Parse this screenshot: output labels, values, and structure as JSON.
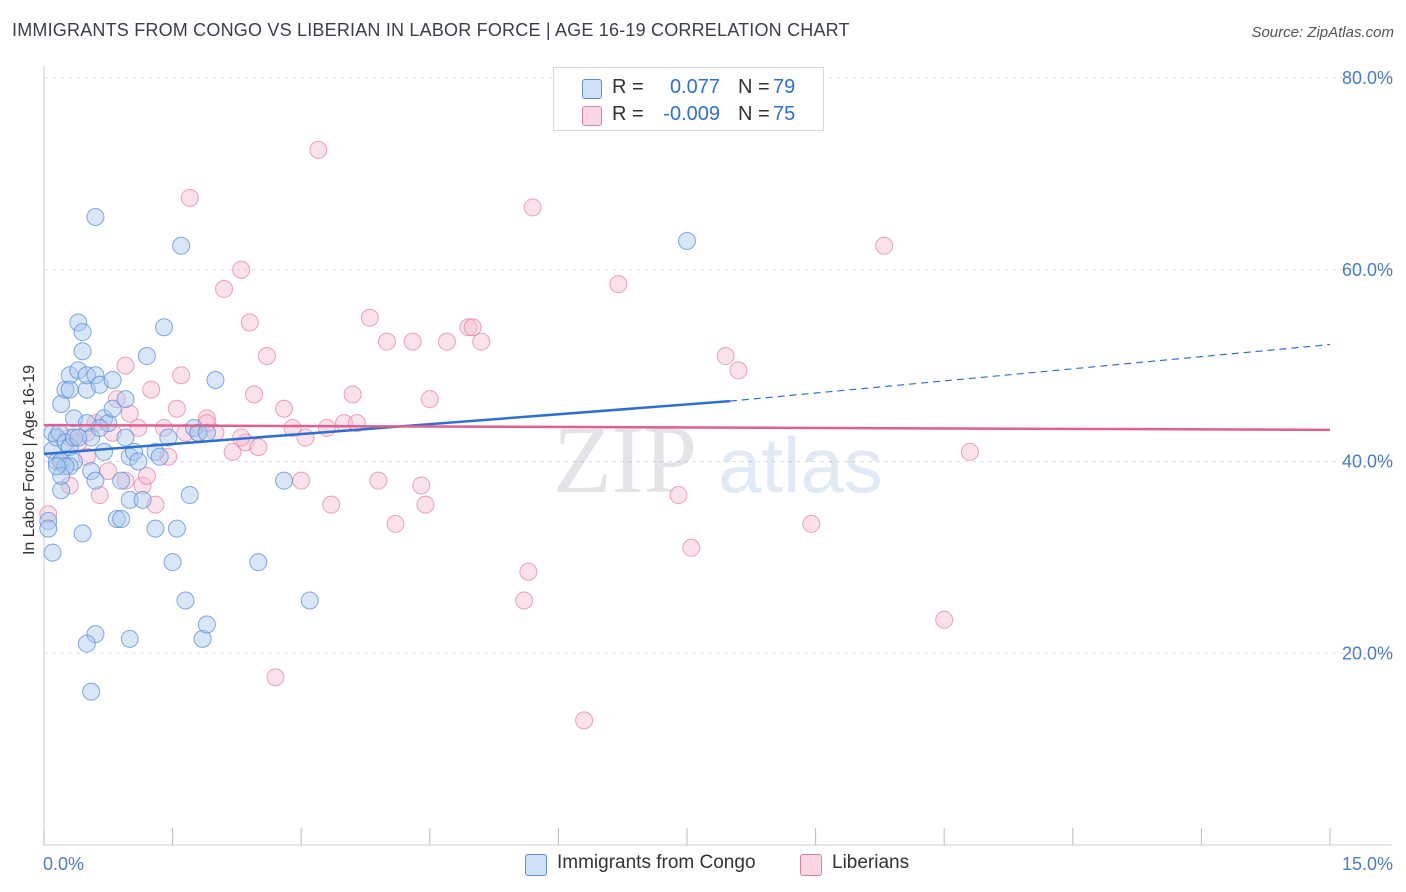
{
  "header": {
    "title": "IMMIGRANTS FROM CONGO VS LIBERIAN IN LABOR FORCE | AGE 16-19 CORRELATION CHART",
    "source": "Source: ZipAtlas.com"
  },
  "watermark": {
    "zip": "ZIP",
    "atlas": "atlas"
  },
  "legend": {
    "rows": [
      {
        "r_label": "R =",
        "r_value": "0.077",
        "n_label": "N =",
        "n_value": "79",
        "color": "#a8c8f0"
      },
      {
        "r_label": "R =",
        "r_value": "-0.009",
        "n_label": "N =",
        "n_value": "75",
        "color": "#f7bcd0"
      }
    ]
  },
  "bottom_legend": [
    {
      "label": "Immigrants from Congo",
      "color": "#a8c8f0"
    },
    {
      "label": "Liberians",
      "color": "#f7bcd0"
    }
  ],
  "colors": {
    "congo_fill": "#a8c8f0",
    "congo_stroke": "#5b8fd6",
    "congo_line": "#2e6fd1",
    "liberian_fill": "#f7bcd0",
    "liberian_stroke": "#e07fa2",
    "liberian_line": "#e0608f",
    "grid": "#dde0e6",
    "tick_text": "#4a7cc9"
  },
  "chart_data": {
    "type": "scatter",
    "title": "IMMIGRANTS FROM CONGO VS LIBERIAN IN LABOR FORCE | AGE 16-19 CORRELATION CHART",
    "xlabel": "",
    "ylabel": "In Labor Force | Age 16-19",
    "xlim": [
      0,
      15
    ],
    "ylim": [
      0,
      80
    ],
    "x_tick_labels": [
      "0.0%",
      "15.0%"
    ],
    "y_ticks": [
      20,
      40,
      60,
      80
    ],
    "y_tick_labels": [
      "20.0%",
      "40.0%",
      "60.0%",
      "80.0%"
    ],
    "grid": "horizontal dashed",
    "legend_position": "top-center",
    "series": [
      {
        "name": "Immigrants from Congo",
        "r": 0.077,
        "n": 79,
        "trend": {
          "x_solid_end": 8.0,
          "x_dashed_end": 15.0,
          "y_at_0": 40.8,
          "y_at_8": 46.3,
          "y_at_15": 52.2
        },
        "points": [
          [
            0.05,
            33.8
          ],
          [
            0.05,
            33.0
          ],
          [
            0.1,
            43.0
          ],
          [
            0.1,
            41.2
          ],
          [
            0.15,
            40.0
          ],
          [
            0.15,
            42.5
          ],
          [
            0.18,
            43.0
          ],
          [
            0.2,
            37.0
          ],
          [
            0.2,
            40.0
          ],
          [
            0.2,
            46.0
          ],
          [
            0.25,
            47.5
          ],
          [
            0.25,
            42.0
          ],
          [
            0.3,
            49.0
          ],
          [
            0.3,
            47.5
          ],
          [
            0.3,
            41.5
          ],
          [
            0.35,
            44.5
          ],
          [
            0.35,
            42.5
          ],
          [
            0.35,
            40.0
          ],
          [
            0.4,
            49.5
          ],
          [
            0.4,
            54.5
          ],
          [
            0.45,
            51.5
          ],
          [
            0.45,
            53.5
          ],
          [
            0.5,
            47.5
          ],
          [
            0.5,
            49.0
          ],
          [
            0.5,
            44.0
          ],
          [
            0.55,
            42.5
          ],
          [
            0.55,
            39.0
          ],
          [
            0.6,
            65.5
          ],
          [
            0.6,
            49.0
          ],
          [
            0.6,
            38.0
          ],
          [
            0.65,
            48.0
          ],
          [
            0.7,
            44.5
          ],
          [
            0.7,
            41.0
          ],
          [
            0.75,
            44.0
          ],
          [
            0.8,
            45.5
          ],
          [
            0.8,
            48.5
          ],
          [
            0.85,
            34.0
          ],
          [
            0.9,
            34.0
          ],
          [
            0.9,
            38.0
          ],
          [
            0.95,
            46.5
          ],
          [
            0.95,
            42.5
          ],
          [
            1.0,
            40.5
          ],
          [
            1.0,
            36.0
          ],
          [
            1.05,
            41.0
          ],
          [
            1.1,
            40.0
          ],
          [
            1.2,
            51.0
          ],
          [
            1.3,
            41.0
          ],
          [
            1.3,
            33.0
          ],
          [
            1.35,
            40.5
          ],
          [
            1.4,
            54.0
          ],
          [
            1.45,
            42.5
          ],
          [
            1.5,
            29.5
          ],
          [
            1.55,
            33.0
          ],
          [
            1.6,
            62.5
          ],
          [
            1.65,
            25.5
          ],
          [
            1.7,
            36.5
          ],
          [
            1.75,
            43.5
          ],
          [
            1.8,
            43.0
          ],
          [
            1.85,
            21.5
          ],
          [
            1.9,
            43.0
          ],
          [
            1.9,
            23.0
          ],
          [
            2.0,
            48.5
          ],
          [
            0.1,
            30.5
          ],
          [
            0.3,
            39.5
          ],
          [
            0.45,
            32.5
          ],
          [
            0.55,
            16.0
          ],
          [
            0.6,
            22.0
          ],
          [
            0.5,
            21.0
          ],
          [
            1.0,
            21.5
          ],
          [
            2.5,
            29.5
          ],
          [
            2.8,
            38.0
          ],
          [
            3.1,
            25.5
          ],
          [
            7.5,
            63.0
          ],
          [
            0.25,
            39.5
          ],
          [
            0.4,
            42.5
          ],
          [
            0.65,
            43.5
          ],
          [
            1.15,
            36.0
          ],
          [
            0.2,
            38.5
          ],
          [
            0.15,
            39.5
          ]
        ]
      },
      {
        "name": "Liberians",
        "r": -0.009,
        "n": 75,
        "trend": {
          "y_at_0": 43.8,
          "y_at_15": 43.3
        },
        "points": [
          [
            0.05,
            34.5
          ],
          [
            0.2,
            40.0
          ],
          [
            0.3,
            37.5
          ],
          [
            0.4,
            42.0
          ],
          [
            0.5,
            40.5
          ],
          [
            0.6,
            44.0
          ],
          [
            0.65,
            36.5
          ],
          [
            0.75,
            39.0
          ],
          [
            0.8,
            43.0
          ],
          [
            0.85,
            46.5
          ],
          [
            0.95,
            50.0
          ],
          [
            0.95,
            38.0
          ],
          [
            1.0,
            45.0
          ],
          [
            1.1,
            43.5
          ],
          [
            1.15,
            37.5
          ],
          [
            1.2,
            38.5
          ],
          [
            1.25,
            47.5
          ],
          [
            1.3,
            35.5
          ],
          [
            1.4,
            43.5
          ],
          [
            1.45,
            40.5
          ],
          [
            1.55,
            45.5
          ],
          [
            1.6,
            49.0
          ],
          [
            1.65,
            43.0
          ],
          [
            1.7,
            67.5
          ],
          [
            1.8,
            43.0
          ],
          [
            1.9,
            44.5
          ],
          [
            2.0,
            43.0
          ],
          [
            2.1,
            58.0
          ],
          [
            2.2,
            41.0
          ],
          [
            2.3,
            60.0
          ],
          [
            2.35,
            42.0
          ],
          [
            2.4,
            54.5
          ],
          [
            2.45,
            47.0
          ],
          [
            2.5,
            41.5
          ],
          [
            2.6,
            51.0
          ],
          [
            2.7,
            17.5
          ],
          [
            2.8,
            45.5
          ],
          [
            2.9,
            43.5
          ],
          [
            3.0,
            38.0
          ],
          [
            3.05,
            42.5
          ],
          [
            3.2,
            72.5
          ],
          [
            3.35,
            35.5
          ],
          [
            3.5,
            44.0
          ],
          [
            3.6,
            47.0
          ],
          [
            3.65,
            44.0
          ],
          [
            3.8,
            55.0
          ],
          [
            3.9,
            38.0
          ],
          [
            4.0,
            52.5
          ],
          [
            4.1,
            33.5
          ],
          [
            4.3,
            52.5
          ],
          [
            4.4,
            37.5
          ],
          [
            4.45,
            35.5
          ],
          [
            4.5,
            46.5
          ],
          [
            4.7,
            52.5
          ],
          [
            4.95,
            54.0
          ],
          [
            5.0,
            54.0
          ],
          [
            5.1,
            52.5
          ],
          [
            5.6,
            25.5
          ],
          [
            5.65,
            28.5
          ],
          [
            5.7,
            66.5
          ],
          [
            6.3,
            13.0
          ],
          [
            6.7,
            58.5
          ],
          [
            7.4,
            36.5
          ],
          [
            7.55,
            31.0
          ],
          [
            7.95,
            51.0
          ],
          [
            8.1,
            49.5
          ],
          [
            8.95,
            33.5
          ],
          [
            9.8,
            62.5
          ],
          [
            10.5,
            23.5
          ],
          [
            10.8,
            41.0
          ],
          [
            0.3,
            42.5
          ],
          [
            0.5,
            43.0
          ],
          [
            1.9,
            44.0
          ],
          [
            3.3,
            43.5
          ],
          [
            2.3,
            42.5
          ]
        ]
      }
    ]
  }
}
